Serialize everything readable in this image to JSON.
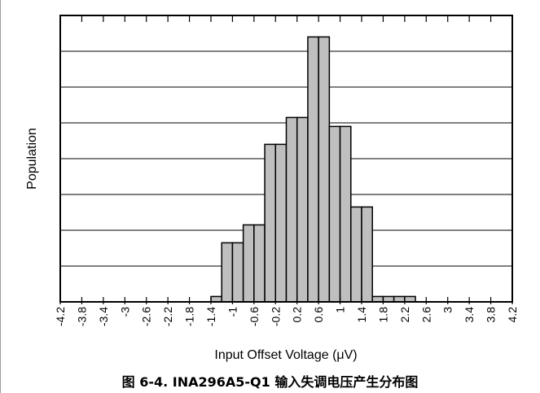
{
  "caption": "图 6-4. INA296A5-Q1 输入失调电压产生分布图",
  "chart_data": {
    "type": "bar",
    "ylabel": "Population",
    "xlabel": "Input Offset Voltage (μV)",
    "x_ticks": [
      "-4.2",
      "-3.8",
      "-3.4",
      "-3",
      "-2.6",
      "-2.2",
      "-1.8",
      "-1.4",
      "-1",
      "-0.6",
      "-0.2",
      "0.2",
      "0.6",
      "1",
      "1.4",
      "1.8",
      "2.2",
      "2.6",
      "3",
      "3.4",
      "3.8",
      "4.2"
    ],
    "xlim": [
      -4.2,
      4.2
    ],
    "bin_width": 0.2,
    "bins": [
      {
        "start": -1.4,
        "value": 0.15
      },
      {
        "start": -1.2,
        "value": 1.65
      },
      {
        "start": -1.0,
        "value": 1.65
      },
      {
        "start": -0.8,
        "value": 2.15
      },
      {
        "start": -0.6,
        "value": 2.15
      },
      {
        "start": -0.4,
        "value": 4.4
      },
      {
        "start": -0.2,
        "value": 4.4
      },
      {
        "start": 0.0,
        "value": 5.15
      },
      {
        "start": 0.2,
        "value": 5.15
      },
      {
        "start": 0.4,
        "value": 7.4
      },
      {
        "start": 0.6,
        "value": 7.4
      },
      {
        "start": 0.8,
        "value": 4.9
      },
      {
        "start": 1.0,
        "value": 4.9
      },
      {
        "start": 1.2,
        "value": 2.65
      },
      {
        "start": 1.4,
        "value": 2.65
      },
      {
        "start": 1.6,
        "value": 0.15
      },
      {
        "start": 1.8,
        "value": 0.15
      },
      {
        "start": 2.0,
        "value": 0.15
      },
      {
        "start": 2.2,
        "value": 0.15
      }
    ],
    "ylim": [
      0,
      8
    ],
    "y_gridlines": 7,
    "bar_color": "#bfbfbf",
    "grid": true,
    "y_tick_labels": false
  }
}
